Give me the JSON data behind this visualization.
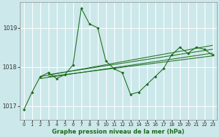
{
  "bg_color": "#cce8ea",
  "grid_color": "#ffffff",
  "line_color": "#1a6b1a",
  "xlabel": "Graphe pression niveau de la mer (hPa)",
  "ylim": [
    1016.65,
    1019.65
  ],
  "xlim": [
    -0.5,
    23.5
  ],
  "yticks": [
    1017,
    1018,
    1019
  ],
  "xticks": [
    0,
    1,
    2,
    3,
    4,
    5,
    6,
    7,
    8,
    9,
    10,
    11,
    12,
    13,
    14,
    15,
    16,
    17,
    18,
    19,
    20,
    21,
    22,
    23
  ],
  "main_line": {
    "x": [
      0,
      1,
      2,
      3,
      4,
      5,
      6,
      7,
      8,
      9,
      10,
      11,
      12,
      13,
      14,
      15,
      16,
      17,
      18,
      19,
      20,
      21,
      22,
      23
    ],
    "y": [
      1016.9,
      1017.35,
      1017.75,
      1017.85,
      1017.7,
      1017.8,
      1018.05,
      1019.5,
      1019.1,
      1019.0,
      1018.15,
      1017.95,
      1017.85,
      1017.3,
      1017.35,
      1017.55,
      1017.75,
      1017.95,
      1018.3,
      1018.5,
      1018.35,
      1018.5,
      1018.45,
      1018.3
    ]
  },
  "trend_lines": [
    {
      "x": [
        2,
        23
      ],
      "y": [
        1017.75,
        1018.55
      ]
    },
    {
      "x": [
        2,
        23
      ],
      "y": [
        1017.7,
        1018.35
      ]
    },
    {
      "x": [
        3,
        23
      ],
      "y": [
        1017.8,
        1018.45
      ]
    },
    {
      "x": [
        3,
        23
      ],
      "y": [
        1017.75,
        1018.28
      ]
    }
  ],
  "x_tick_fontsize": 5.0,
  "y_tick_fontsize": 6.0,
  "xlabel_fontsize": 6.2
}
